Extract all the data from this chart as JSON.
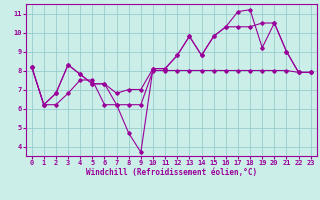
{
  "xlabel": "Windchill (Refroidissement éolien,°C)",
  "bg_color": "#cceee8",
  "line_color": "#990099",
  "grid_color": "#99cccc",
  "xlim": [
    -0.5,
    23.5
  ],
  "ylim": [
    3.5,
    11.5
  ],
  "yticks": [
    4,
    5,
    6,
    7,
    8,
    9,
    10,
    11
  ],
  "xticks": [
    0,
    1,
    2,
    3,
    4,
    5,
    6,
    7,
    8,
    9,
    10,
    11,
    12,
    13,
    14,
    15,
    16,
    17,
    18,
    19,
    20,
    21,
    22,
    23
  ],
  "lines": [
    {
      "x": [
        0,
        1,
        2,
        3,
        4,
        5,
        6,
        7,
        8,
        9,
        10,
        11,
        12,
        13,
        14,
        15,
        16,
        17,
        18,
        19,
        20,
        21,
        22,
        23
      ],
      "y": [
        8.2,
        6.2,
        6.2,
        6.8,
        7.5,
        7.5,
        6.2,
        6.2,
        6.2,
        6.2,
        8.0,
        8.0,
        8.0,
        8.0,
        8.0,
        8.0,
        8.0,
        8.0,
        8.0,
        8.0,
        8.0,
        8.0,
        7.9,
        7.9
      ]
    },
    {
      "x": [
        0,
        1,
        2,
        3,
        4,
        5,
        6,
        7,
        8,
        9,
        10,
        11,
        12,
        13,
        14,
        15,
        16,
        17,
        18,
        19,
        20,
        21,
        22,
        23
      ],
      "y": [
        8.2,
        6.2,
        6.8,
        8.3,
        7.8,
        7.3,
        7.3,
        6.8,
        7.0,
        7.0,
        8.1,
        8.1,
        8.8,
        9.8,
        8.8,
        9.8,
        10.3,
        10.3,
        10.3,
        10.5,
        10.5,
        9.0,
        7.9,
        7.9
      ]
    },
    {
      "x": [
        0,
        1,
        2,
        3,
        4,
        5,
        6,
        7,
        8,
        9,
        10,
        11,
        12,
        13,
        14,
        15,
        16,
        17,
        18,
        19,
        20,
        21,
        22,
        23
      ],
      "y": [
        8.2,
        6.2,
        6.8,
        8.3,
        7.8,
        7.3,
        7.3,
        6.2,
        4.7,
        3.7,
        8.1,
        8.1,
        8.8,
        9.8,
        8.8,
        9.8,
        10.3,
        11.1,
        11.2,
        9.2,
        10.5,
        9.0,
        7.9,
        7.9
      ]
    }
  ]
}
